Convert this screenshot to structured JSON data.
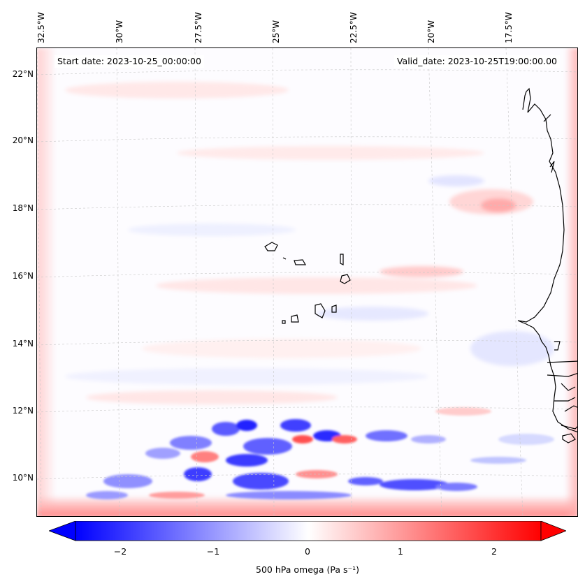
{
  "map": {
    "start_date": "Start date: 2023-10-25_00:00:00",
    "valid_date": "Valid_date: 2023-10-25T19:00:00.00",
    "lon_labels": [
      "32.5°W",
      "30°W",
      "27.5°W",
      "25°W",
      "22.5°W",
      "20°W",
      "17.5°W"
    ],
    "lat_labels": [
      "22°N",
      "20°N",
      "18°N",
      "16°N",
      "14°N",
      "12°N",
      "10°N"
    ],
    "colors": {
      "negative": "#0000ff",
      "zero": "#ffffff",
      "positive": "#ff0000",
      "coastline": "#000000"
    }
  },
  "colorbar": {
    "label": "500 hPa omega (Pa s⁻¹)",
    "ticks": [
      "−2",
      "−1",
      "0",
      "1",
      "2"
    ],
    "range": [
      -2.5,
      2.5
    ]
  }
}
